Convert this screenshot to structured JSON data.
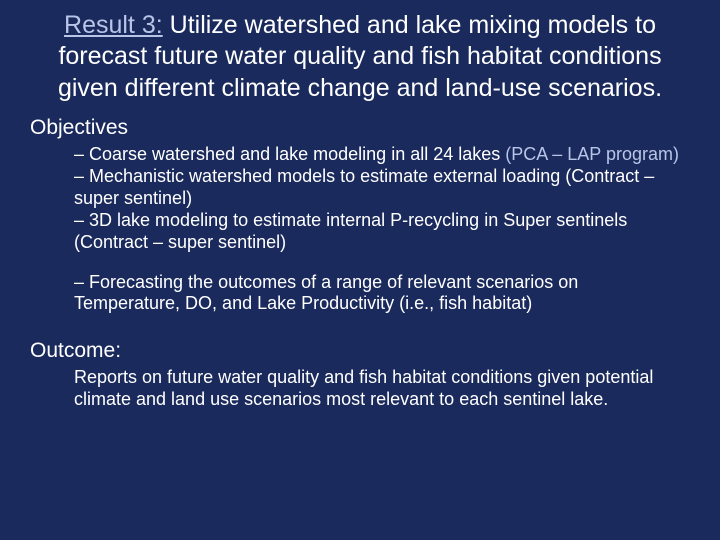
{
  "colors": {
    "background": "#1a2a5c",
    "text": "#ffffff",
    "accent": "#b8c4e8"
  },
  "typography": {
    "title_fontsize": 25,
    "section_fontsize": 21,
    "bullet_fontsize": 18,
    "title_family": "Arial, sans-serif",
    "body_family": "Tahoma, Verdana, sans-serif"
  },
  "title": {
    "prefix": "Result 3:",
    "rest": " Utilize watershed and lake mixing models to forecast future water quality and fish habitat conditions given different climate change and land-use scenarios."
  },
  "objectives": {
    "heading": "Objectives",
    "items": [
      {
        "dash": "– ",
        "text": "Coarse watershed and lake modeling in all 24 lakes ",
        "paren": "(PCA – LAP program)"
      },
      {
        "dash": "– ",
        "text": "Mechanistic watershed models to estimate external loading (Contract – super sentinel)",
        "paren": ""
      },
      {
        "dash": "– ",
        "text": "3D lake modeling to estimate internal P-recycling in Super sentinels (Contract – super sentinel)",
        "paren": ""
      },
      {
        "dash": "– ",
        "text": "Forecasting the outcomes of a range of relevant scenarios on Temperature, DO, and Lake Productivity (i.e., fish habitat)",
        "paren": ""
      }
    ]
  },
  "outcome": {
    "heading": "Outcome:",
    "text": "Reports on future water quality and fish habitat conditions given potential climate and land use scenarios most relevant to each sentinel lake."
  }
}
